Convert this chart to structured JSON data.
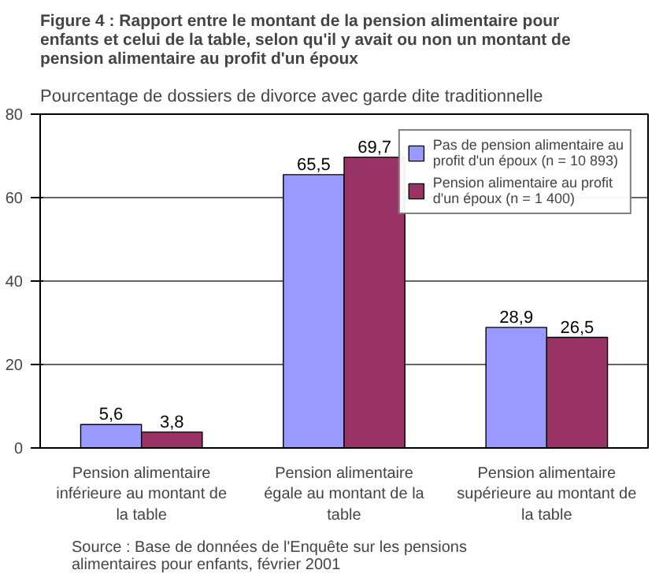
{
  "chart_data": {
    "type": "bar",
    "title": "Figure 4 : Rapport entre le montant de la pension alimentaire pour enfants et celui de la table, selon qu'il y avait ou non un montant de pension alimentaire au profit d'un époux",
    "subtitle": "Pourcentage de dossiers de divorce avec garde dite traditionnelle",
    "categories": [
      "Pension alimentaire inférieure au montant de la table",
      "Pension alimentaire égale au montant de la table",
      "Pension alimentaire supérieure au montant de la table"
    ],
    "series": [
      {
        "name": "Pas de pension alimentaire au profit d'un époux (n = 10 893)",
        "color": "#9999ff",
        "values": [
          5.6,
          65.5,
          28.9
        ],
        "value_labels": [
          "5,6",
          "65,5",
          "28,9"
        ]
      },
      {
        "name": "Pension alimentaire au profit d'un époux (n = 1 400)",
        "color": "#993366",
        "values": [
          3.8,
          69.7,
          26.5
        ],
        "value_labels": [
          "3,8",
          "69,7",
          "26,5"
        ]
      }
    ],
    "ylim": [
      0,
      80
    ],
    "yticks": [
      0,
      20,
      40,
      60,
      80
    ],
    "grid": "y",
    "legend": "top right",
    "annotations": [
      "Source : Base de données de l'Enquête sur les pensions alimentaires pour enfants, février 2001"
    ]
  }
}
